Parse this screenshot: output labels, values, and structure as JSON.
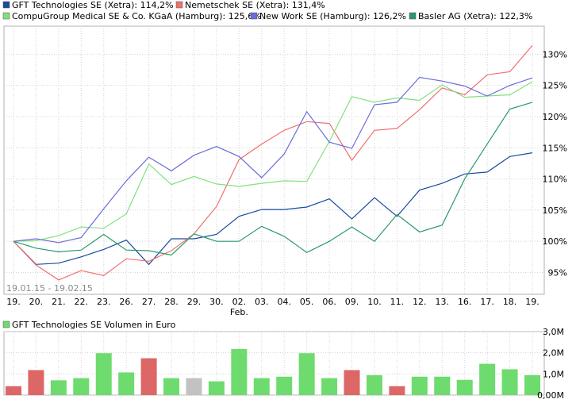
{
  "chart_data": [
    {
      "type": "line",
      "date_range_label": "19.01.15 - 19.02.15",
      "categories": [
        "19.",
        "20.",
        "21.",
        "22.",
        "23.",
        "26.",
        "27.",
        "28.",
        "29.",
        "30.",
        "02.",
        "03.",
        "04.",
        "05.",
        "06.",
        "09.",
        "10.",
        "11.",
        "12.",
        "13.",
        "16.",
        "17.",
        "18.",
        "19."
      ],
      "month_labels": [
        {
          "index": 10,
          "label": "Feb."
        }
      ],
      "y_ticks": [
        "95%",
        "100%",
        "105%",
        "110%",
        "115%",
        "120%",
        "125%",
        "130%"
      ],
      "y_tick_values": [
        95,
        100,
        105,
        110,
        115,
        120,
        125,
        130
      ],
      "ylim": [
        91.5,
        134.5
      ],
      "grid": true,
      "series": [
        {
          "name": "GFT Technologies SE (Xetra): 114,2%",
          "color": "#1a4a9e",
          "values": [
            100,
            96.3,
            96.5,
            97.5,
            98.7,
            100.2,
            96.3,
            100.4,
            100.4,
            101.1,
            104.0,
            105.1,
            105.1,
            105.5,
            106.8,
            103.6,
            107.0,
            104.0,
            108.2,
            109.3,
            110.8,
            111.1,
            113.6,
            114.2
          ]
        },
        {
          "name": "Nemetschek SE (Xetra): 131,4%",
          "color": "#f07070",
          "values": [
            100,
            96.2,
            93.8,
            95.3,
            94.5,
            97.2,
            96.8,
            98.5,
            101.2,
            105.6,
            113.1,
            115.6,
            117.8,
            119.2,
            118.9,
            113.0,
            117.8,
            118.1,
            121.1,
            124.6,
            123.5,
            126.7,
            127.2,
            131.4
          ]
        },
        {
          "name": "CompuGroup Medical SE & Co. KGaA (Hamburg): 125,6%",
          "color": "#7ee27e",
          "values": [
            100,
            100.1,
            100.9,
            102.3,
            102.1,
            104.4,
            112.4,
            109.1,
            110.4,
            109.2,
            108.8,
            109.3,
            109.7,
            109.6,
            116.0,
            123.2,
            122.3,
            123.0,
            122.6,
            125.1,
            123.1,
            123.3,
            123.5,
            125.6
          ]
        },
        {
          "name": "New Work SE (Hamburg): 126,2%",
          "color": "#6b6bdc",
          "values": [
            100,
            100.4,
            99.8,
            100.6,
            105.2,
            109.7,
            113.5,
            111.3,
            113.8,
            115.2,
            113.6,
            110.2,
            114.0,
            120.8,
            115.9,
            114.9,
            121.9,
            122.3,
            126.3,
            125.7,
            124.9,
            123.3,
            125.0,
            126.2
          ]
        },
        {
          "name": "Basler AG (Xetra): 122,3%",
          "color": "#2a9a6a",
          "values": [
            100,
            98.9,
            98.3,
            98.6,
            101.1,
            98.6,
            98.5,
            97.8,
            101.2,
            100.0,
            100.0,
            102.4,
            100.8,
            98.2,
            100.0,
            102.3,
            100.0,
            104.3,
            101.5,
            102.6,
            110.0,
            115.6,
            121.2,
            122.3
          ]
        }
      ]
    },
    {
      "type": "bar",
      "title": "GFT Technologies SE Volumen in Euro",
      "categories": [
        "19.",
        "20.",
        "21.",
        "22.",
        "23.",
        "26.",
        "27.",
        "28.",
        "29.",
        "30.",
        "02.",
        "03.",
        "04.",
        "05.",
        "06.",
        "09.",
        "10.",
        "11.",
        "12.",
        "13.",
        "16.",
        "17.",
        "18.",
        "19."
      ],
      "values": [
        0.42,
        1.18,
        0.7,
        0.8,
        1.98,
        1.07,
        1.74,
        0.8,
        0.8,
        0.65,
        2.18,
        0.8,
        0.87,
        1.98,
        0.8,
        1.18,
        0.94,
        0.42,
        0.87,
        0.87,
        0.72,
        1.48,
        1.22,
        0.94
      ],
      "bar_status": [
        "down",
        "down",
        "up",
        "up",
        "up",
        "up",
        "down",
        "up",
        "neutral",
        "up",
        "up",
        "up",
        "up",
        "up",
        "up",
        "down",
        "up",
        "down",
        "up",
        "up",
        "up",
        "up",
        "up",
        "up"
      ],
      "status_colors": {
        "up": "#6edb6e",
        "down": "#dd6666",
        "neutral": "#c2c2c2"
      },
      "y_ticks": [
        "0,00M",
        "1,0M",
        "2,0M",
        "3,0M"
      ],
      "y_tick_values": [
        0,
        1,
        2,
        3
      ],
      "ylim": [
        0,
        3
      ],
      "grid": true
    }
  ]
}
